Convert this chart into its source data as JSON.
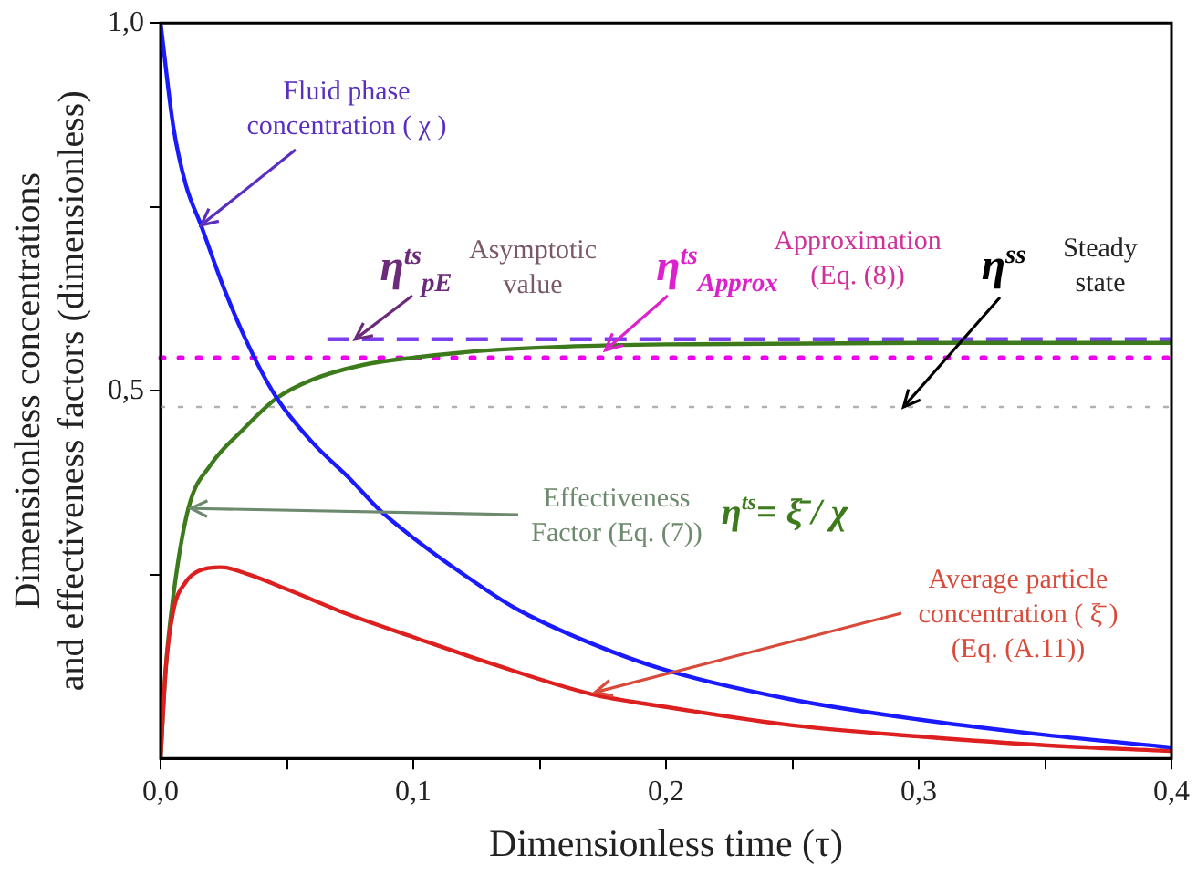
{
  "chart_data": {
    "type": "line",
    "xlabel": "Dimensionless time (τ)",
    "ylabel": "Dimensionless concentrations\nand effectiveness factors (dimensionless)",
    "xlim": [
      0,
      0.4
    ],
    "xticks": [
      {
        "value": 0,
        "label": "0,0"
      },
      {
        "value": 0.05,
        "label": null
      },
      {
        "value": 0.1,
        "label": "0,1"
      },
      {
        "value": 0.15,
        "label": null
      },
      {
        "value": 0.2,
        "label": "0,2"
      },
      {
        "value": 0.25,
        "label": null
      },
      {
        "value": 0.3,
        "label": "0,3"
      },
      {
        "value": 0.35,
        "label": null
      },
      {
        "value": 0.4,
        "label": "0,4"
      }
    ],
    "ylim": [
      0,
      1
    ],
    "yticks": [
      {
        "value": 0.25,
        "label": null
      },
      {
        "value": 0.5,
        "label": "0,5"
      },
      {
        "value": 0.75,
        "label": null
      },
      {
        "value": 1,
        "label": "1,0"
      }
    ],
    "grid": false,
    "legend": false,
    "series": [
      {
        "color": "#1a1aff",
        "x": [
          0,
          0.005,
          0.01,
          0.016,
          0.025,
          0.035,
          0.046,
          0.06,
          0.075,
          0.086,
          0.1,
          0.12,
          0.14,
          0.17,
          0.2,
          0.25,
          0.3,
          0.35,
          0.4
        ],
        "values": [
          1.0,
          0.86,
          0.78,
          0.725,
          0.64,
          0.56,
          0.49,
          0.43,
          0.38,
          0.34,
          0.3,
          0.25,
          0.205,
          0.157,
          0.12,
          0.08,
          0.053,
          0.032,
          0.015
        ]
      },
      {
        "color": "#dd1f1f",
        "x": [
          0,
          0.002,
          0.005,
          0.01,
          0.015,
          0.024,
          0.035,
          0.05,
          0.075,
          0.1,
          0.13,
          0.17,
          0.2,
          0.25,
          0.3,
          0.35,
          0.4
        ],
        "values": [
          0,
          0.12,
          0.2,
          0.24,
          0.255,
          0.26,
          0.25,
          0.23,
          0.195,
          0.165,
          0.13,
          0.088,
          0.07,
          0.045,
          0.03,
          0.018,
          0.01
        ]
      },
      {
        "color": "#3c7a1c",
        "x": [
          0,
          0.002,
          0.005,
          0.011,
          0.02,
          0.032,
          0.046,
          0.06,
          0.08,
          0.1,
          0.13,
          0.16,
          0.2,
          0.3,
          0.4
        ],
        "values": [
          0,
          0.12,
          0.22,
          0.34,
          0.4,
          0.445,
          0.49,
          0.515,
          0.535,
          0.545,
          0.555,
          0.56,
          0.563,
          0.565,
          0.565
        ]
      },
      {
        "color": "#7b3ff0",
        "line_style": "dashed",
        "x": [
          0.066,
          0.4
        ],
        "values": [
          0.57,
          0.57
        ]
      }
    ],
    "ref_lines": [
      {
        "axis": "y",
        "value": 0.545,
        "color": "#ee00ee",
        "line_style": "dotted"
      },
      {
        "axis": "y",
        "value": 0.478,
        "color": "#b0b0b0",
        "line_style": "dotted"
      }
    ],
    "annotations": [
      {
        "text": "Fluid phase concentration ( χ )",
        "x": 0.016,
        "y": 0.725
      },
      {
        "text": "η$^{ts}$$_{pE}$",
        "x": 0.077,
        "y": 0.57
      },
      "Asymptotic value",
      {
        "text": "η$^{ts}$$_{Approx}$",
        "x": 0.176,
        "y": 0.555
      },
      "Approximation (Eq. (8))",
      {
        "text": "η$^{ss}$",
        "x": 0.294,
        "y": 0.478
      },
      "Steady state",
      {
        "text": "Effectiveness Factor (Eq. (7))",
        "x": 0.012,
        "y": 0.34
      },
      "η$^{ts}$= ξ̄ / χ",
      {
        "text": "Average particle concentration ( ξ̄ ) (Eq. (A.11))",
        "x": 0.172,
        "y": 0.09
      }
    ]
  }
}
